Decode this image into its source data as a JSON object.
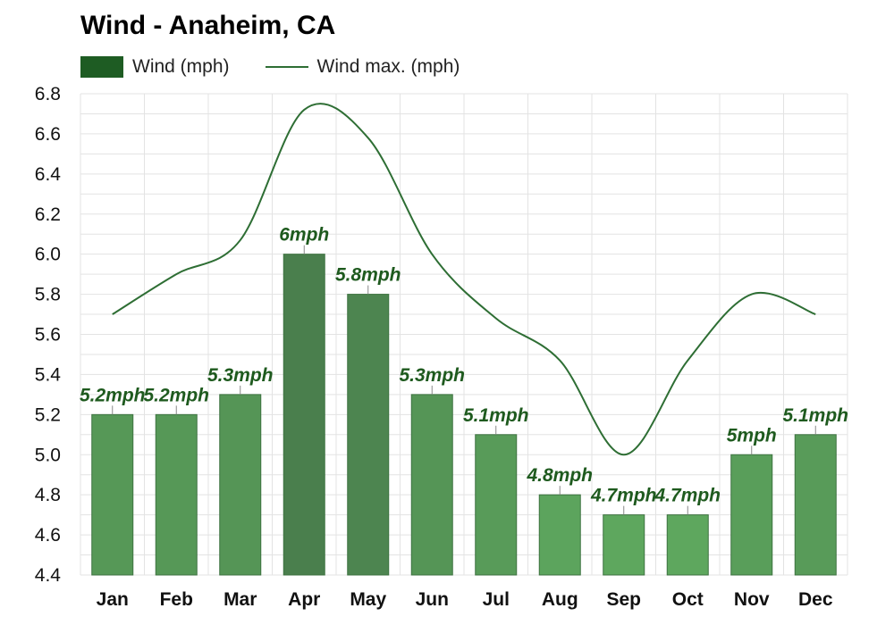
{
  "chart_data": {
    "type": "bar",
    "title": "Wind - Anaheim, CA",
    "categories": [
      "Jan",
      "Feb",
      "Mar",
      "Apr",
      "May",
      "Jun",
      "Jul",
      "Aug",
      "Sep",
      "Oct",
      "Nov",
      "Dec"
    ],
    "series": [
      {
        "name": "Wind (mph)",
        "type": "bar",
        "values": [
          5.2,
          5.2,
          5.3,
          6.0,
          5.8,
          5.3,
          5.1,
          4.8,
          4.7,
          4.7,
          5.0,
          5.1
        ],
        "labels": [
          "5.2mph",
          "5.2mph",
          "5.3mph",
          "6mph",
          "5.8mph",
          "5.3mph",
          "5.1mph",
          "4.8mph",
          "4.7mph",
          "4.7mph",
          "5mph",
          "5.1mph"
        ]
      },
      {
        "name": "Wind max. (mph)",
        "type": "line",
        "values": [
          5.7,
          5.9,
          6.07,
          6.72,
          6.58,
          6.0,
          5.68,
          5.47,
          5.0,
          5.47,
          5.8,
          5.7
        ]
      }
    ],
    "yticks": [
      "4.4",
      "4.6",
      "4.8",
      "5.0",
      "5.2",
      "5.4",
      "5.6",
      "5.8",
      "6.0",
      "6.2",
      "6.4",
      "6.6",
      "6.8"
    ],
    "ylim": [
      4.4,
      6.8
    ],
    "xlabel": "",
    "ylabel": "",
    "grid": true,
    "legend": "top-left",
    "colors": {
      "bar_light": "#5ea75e",
      "bar_mid": "#55995a",
      "bar_dark": "#4a7f4d",
      "bar_border": "#3d7240",
      "line": "#2e6e34",
      "label": "#1e5a1e",
      "legend_bar": "#1e5c23",
      "legend_line": "#2e6e34",
      "grid": "#e3e3e3"
    }
  }
}
